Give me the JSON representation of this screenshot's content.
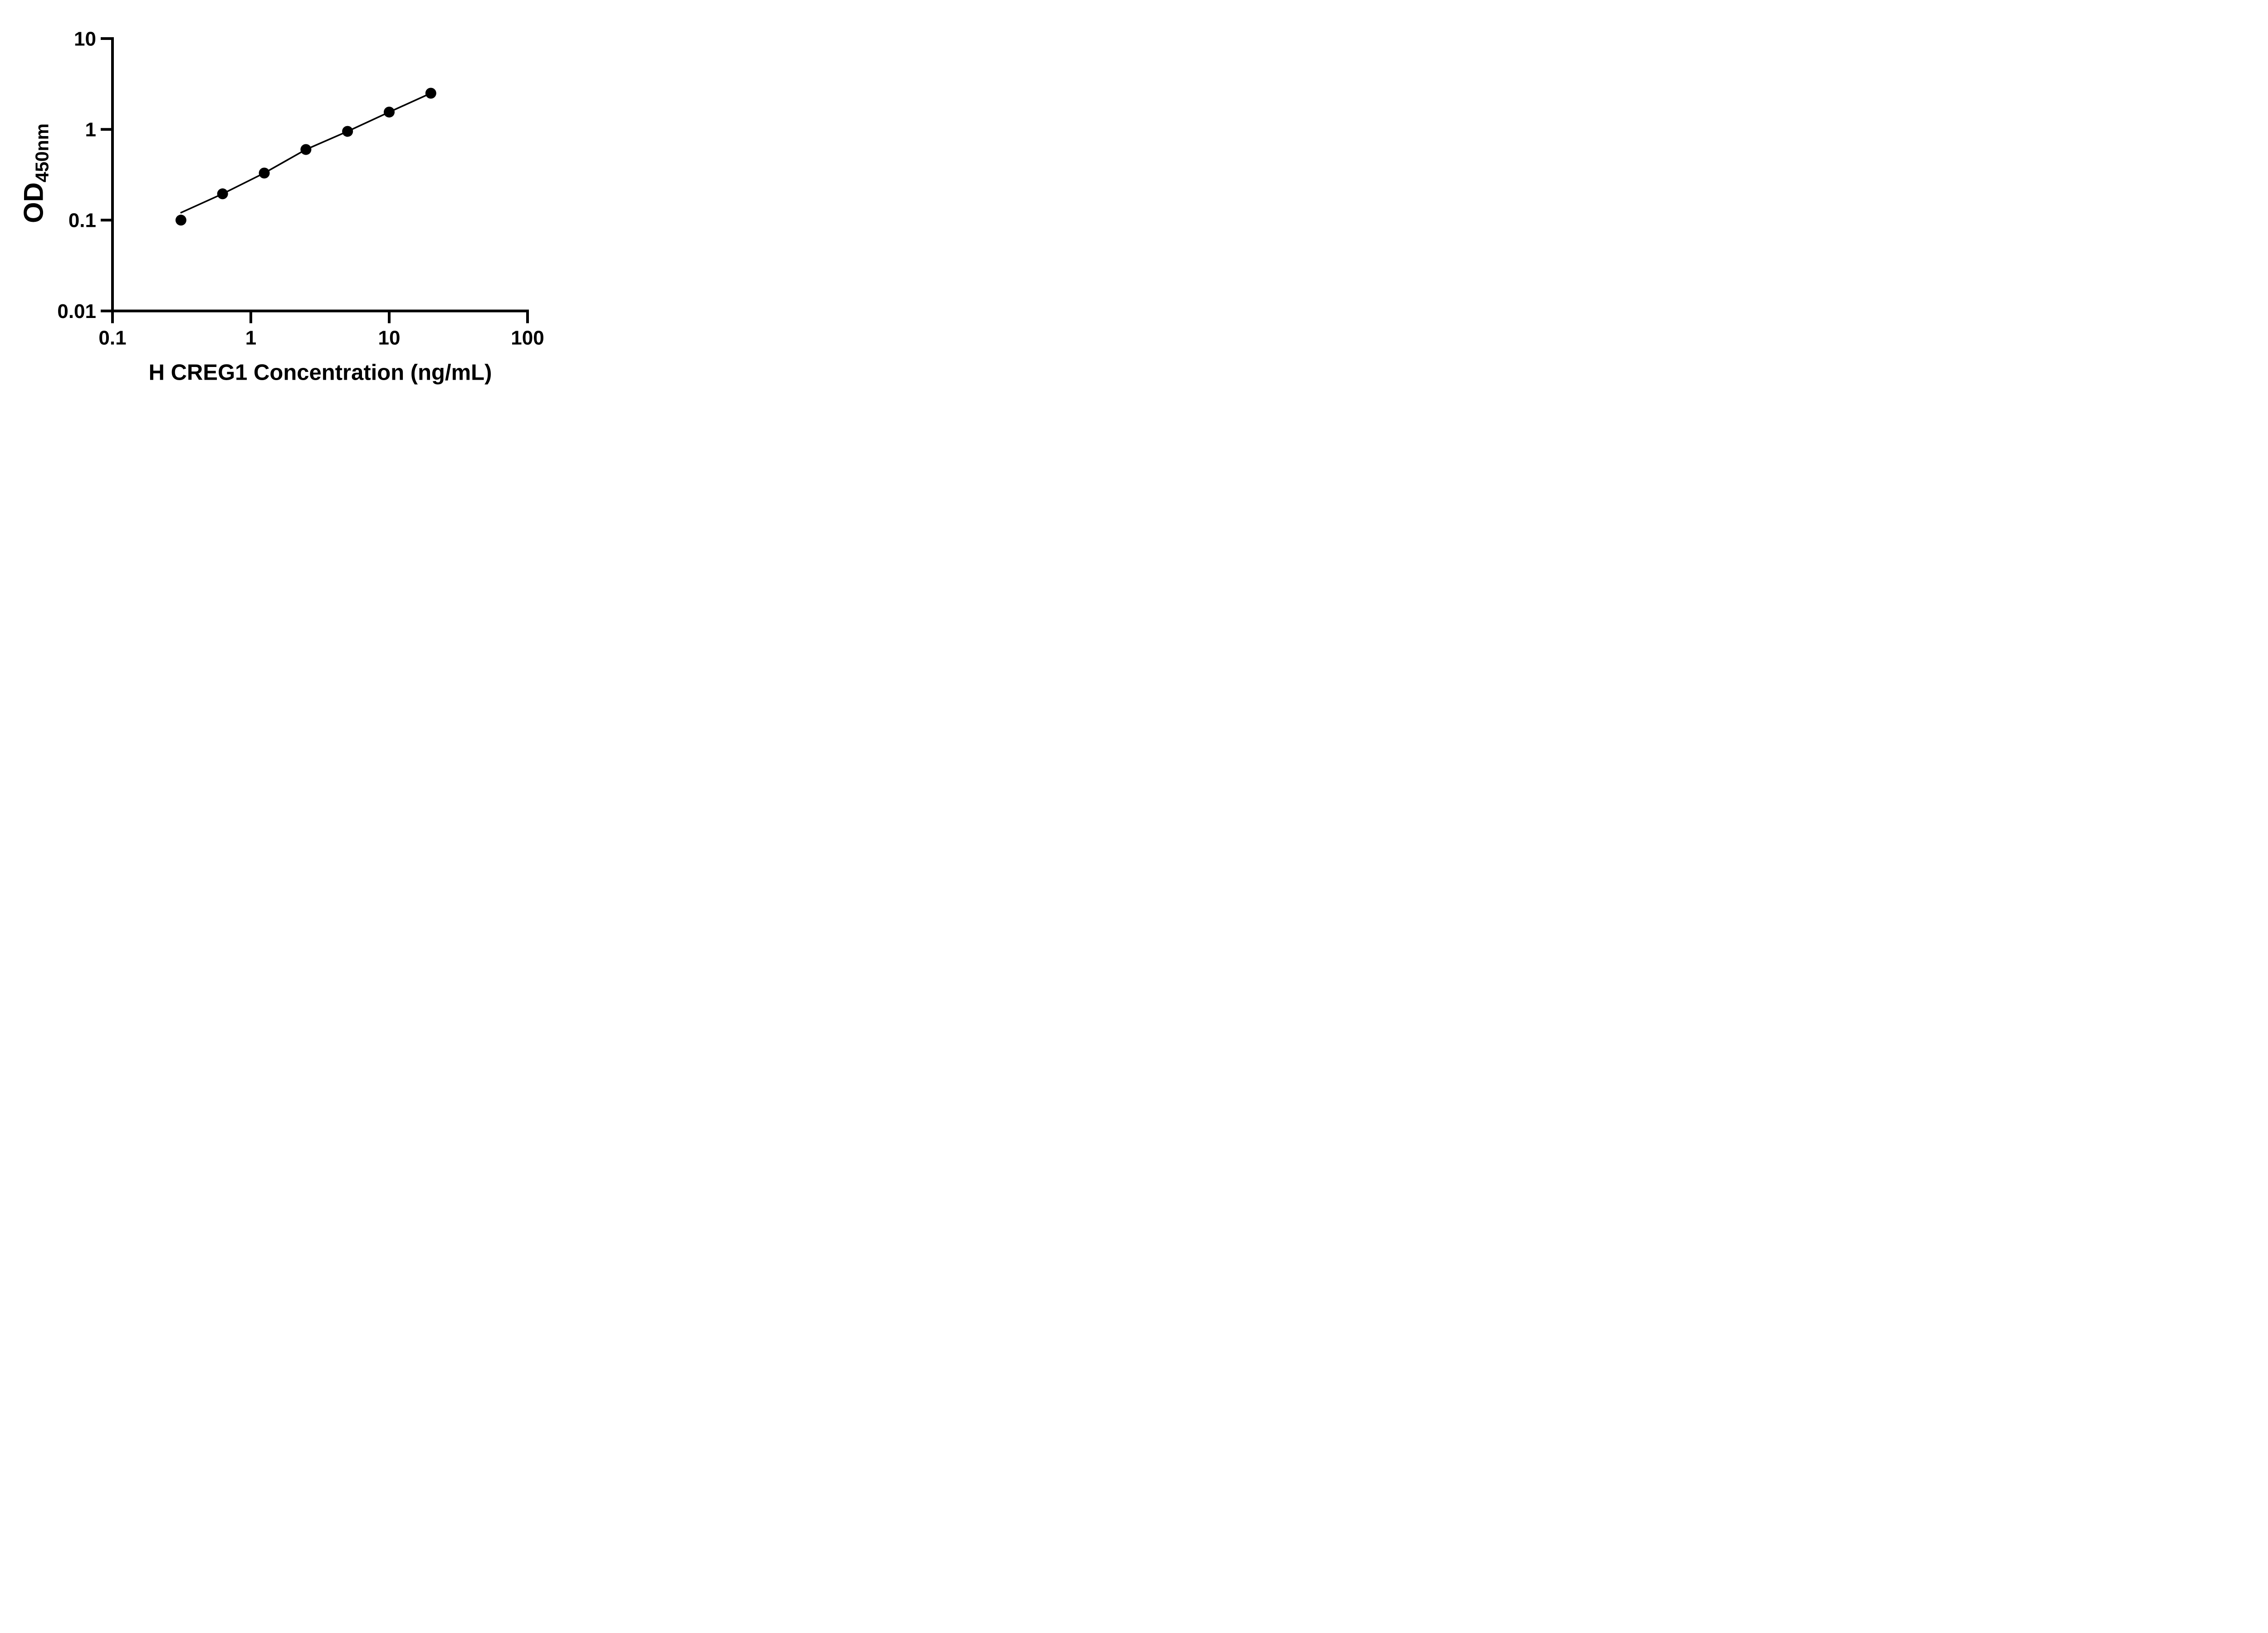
{
  "chart_data": {
    "type": "scatter",
    "title": "",
    "xlabel": "H CREG1 Concentration (ng/mL)",
    "ylabel": "OD",
    "ylabel_subscript": "450nm",
    "x_scale": "log",
    "y_scale": "log",
    "xlim": [
      0.1,
      100
    ],
    "ylim": [
      0.01,
      10
    ],
    "x_tick_labels": [
      "0.1",
      "1",
      "10",
      "100"
    ],
    "y_tick_labels": [
      "10",
      "1",
      "0.1",
      "0.01"
    ],
    "grid": false,
    "legend": false,
    "colors": {
      "axis": "#000000",
      "line": "#000000",
      "marker": "#000000",
      "text": "#000000",
      "background": "#ffffff"
    },
    "series": [
      {
        "x": [
          0.3125,
          0.625,
          1.25,
          2.5,
          5,
          10,
          20
        ],
        "y": [
          0.1,
          0.195,
          0.33,
          0.6,
          0.95,
          1.55,
          2.5
        ]
      }
    ]
  }
}
